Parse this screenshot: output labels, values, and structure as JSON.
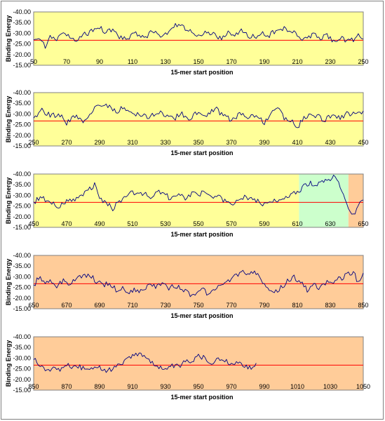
{
  "chart_data": [
    {
      "type": "line",
      "xlabel": "15-mer start position",
      "ylabel": "Binding Energy",
      "xlim": [
        50,
        250
      ],
      "ylim": [
        -15,
        -40
      ],
      "y_axis_reversed": true,
      "xticks": [
        50,
        70,
        90,
        110,
        130,
        150,
        170,
        190,
        210,
        230,
        250
      ],
      "yticks": [
        "-40.00",
        "-35.00",
        "-30.00",
        "-25.00",
        "-20.00",
        "-15.00"
      ],
      "threshold": -26.7,
      "regions": [
        {
          "from": 50,
          "to": 250,
          "color": "#FFFF99"
        }
      ],
      "anchors": [
        [
          50,
          -27
        ],
        [
          54,
          -28
        ],
        [
          57,
          -23
        ],
        [
          60,
          -29
        ],
        [
          64,
          -27
        ],
        [
          68,
          -30
        ],
        [
          72,
          -28
        ],
        [
          76,
          -27
        ],
        [
          80,
          -29
        ],
        [
          85,
          -31
        ],
        [
          90,
          -33
        ],
        [
          94,
          -30
        ],
        [
          98,
          -32
        ],
        [
          102,
          -28
        ],
        [
          106,
          -27
        ],
        [
          110,
          -30
        ],
        [
          114,
          -29
        ],
        [
          118,
          -28
        ],
        [
          122,
          -31
        ],
        [
          126,
          -29
        ],
        [
          130,
          -30
        ],
        [
          134,
          -32
        ],
        [
          137,
          -34
        ],
        [
          140,
          -33
        ],
        [
          144,
          -31
        ],
        [
          148,
          -30
        ],
        [
          152,
          -29
        ],
        [
          156,
          -31
        ],
        [
          160,
          -29
        ],
        [
          164,
          -28
        ],
        [
          168,
          -30
        ],
        [
          172,
          -29
        ],
        [
          176,
          -31
        ],
        [
          180,
          -29
        ],
        [
          184,
          -28
        ],
        [
          188,
          -30
        ],
        [
          192,
          -28
        ],
        [
          196,
          -31
        ],
        [
          200,
          -33
        ],
        [
          204,
          -31
        ],
        [
          208,
          -30
        ],
        [
          212,
          -27
        ],
        [
          216,
          -28
        ],
        [
          220,
          -30
        ],
        [
          224,
          -27
        ],
        [
          228,
          -29
        ],
        [
          232,
          -26
        ],
        [
          236,
          -28
        ],
        [
          240,
          -26
        ],
        [
          244,
          -27
        ],
        [
          247,
          -30
        ],
        [
          250,
          -27
        ]
      ],
      "seed": 11,
      "end": 250
    },
    {
      "type": "line",
      "xlabel": "15-mer start position",
      "ylabel": "Binding Energy",
      "xlim": [
        250,
        450
      ],
      "ylim": [
        -15,
        -40
      ],
      "y_axis_reversed": true,
      "xticks": [
        250,
        270,
        290,
        310,
        330,
        350,
        370,
        390,
        410,
        430,
        450
      ],
      "yticks": [
        "-40.00",
        "-35.00",
        "-30.00",
        "-25.00",
        "-20.00",
        "-15.00"
      ],
      "threshold": -26.7,
      "regions": [
        {
          "from": 250,
          "to": 450,
          "color": "#FFFF99"
        }
      ],
      "anchors": [
        [
          250,
          -27
        ],
        [
          255,
          -32
        ],
        [
          260,
          -29
        ],
        [
          265,
          -30
        ],
        [
          270,
          -26
        ],
        [
          275,
          -29
        ],
        [
          280,
          -27
        ],
        [
          285,
          -31
        ],
        [
          290,
          -35
        ],
        [
          295,
          -34
        ],
        [
          300,
          -31
        ],
        [
          305,
          -33
        ],
        [
          310,
          -29
        ],
        [
          315,
          -30
        ],
        [
          320,
          -28
        ],
        [
          325,
          -31
        ],
        [
          330,
          -29
        ],
        [
          335,
          -28
        ],
        [
          340,
          -30
        ],
        [
          345,
          -28
        ],
        [
          350,
          -31
        ],
        [
          355,
          -29
        ],
        [
          360,
          -33
        ],
        [
          365,
          -29
        ],
        [
          370,
          -27
        ],
        [
          375,
          -30
        ],
        [
          380,
          -28
        ],
        [
          385,
          -29
        ],
        [
          390,
          -26
        ],
        [
          395,
          -31
        ],
        [
          398,
          -33
        ],
        [
          402,
          -28
        ],
        [
          406,
          -27
        ],
        [
          410,
          -24
        ],
        [
          414,
          -28
        ],
        [
          418,
          -30
        ],
        [
          422,
          -29
        ],
        [
          426,
          -27
        ],
        [
          430,
          -29
        ],
        [
          435,
          -28
        ],
        [
          440,
          -30
        ],
        [
          445,
          -30
        ],
        [
          450,
          -31
        ]
      ],
      "seed": 23,
      "end": 450
    },
    {
      "type": "line",
      "xlabel": "15-mer start position",
      "ylabel": "Binding Energy",
      "xlim": [
        450,
        650
      ],
      "ylim": [
        -15,
        -40
      ],
      "y_axis_reversed": true,
      "xticks": [
        450,
        470,
        490,
        510,
        530,
        550,
        570,
        590,
        610,
        630,
        650
      ],
      "yticks": [
        "-40.00",
        "-35.00",
        "-30.00",
        "-25.00",
        "-20.00",
        "-15.00"
      ],
      "threshold": -26.7,
      "regions": [
        {
          "from": 450,
          "to": 611,
          "color": "#FFFF99"
        },
        {
          "from": 611,
          "to": 641,
          "color": "#CCFFCC"
        },
        {
          "from": 641,
          "to": 650,
          "color": "#FFCC99"
        }
      ],
      "anchors": [
        [
          450,
          -27
        ],
        [
          455,
          -29
        ],
        [
          460,
          -27
        ],
        [
          465,
          -25
        ],
        [
          470,
          -27
        ],
        [
          475,
          -28
        ],
        [
          480,
          -31
        ],
        [
          484,
          -33
        ],
        [
          487,
          -35
        ],
        [
          490,
          -29
        ],
        [
          494,
          -26
        ],
        [
          498,
          -24
        ],
        [
          502,
          -27
        ],
        [
          506,
          -30
        ],
        [
          510,
          -32
        ],
        [
          514,
          -30
        ],
        [
          518,
          -31
        ],
        [
          522,
          -29
        ],
        [
          526,
          -32
        ],
        [
          530,
          -30
        ],
        [
          534,
          -28
        ],
        [
          538,
          -30
        ],
        [
          542,
          -29
        ],
        [
          546,
          -31
        ],
        [
          550,
          -30
        ],
        [
          554,
          -32
        ],
        [
          558,
          -29
        ],
        [
          562,
          -30
        ],
        [
          566,
          -27
        ],
        [
          570,
          -25
        ],
        [
          574,
          -27
        ],
        [
          578,
          -29
        ],
        [
          582,
          -28
        ],
        [
          586,
          -27
        ],
        [
          590,
          -26
        ],
        [
          594,
          -28
        ],
        [
          598,
          -27
        ],
        [
          602,
          -29
        ],
        [
          606,
          -30
        ],
        [
          610,
          -32
        ],
        [
          614,
          -34
        ],
        [
          618,
          -36
        ],
        [
          622,
          -35
        ],
        [
          626,
          -37
        ],
        [
          630,
          -38
        ],
        [
          632,
          -39
        ],
        [
          635,
          -36
        ],
        [
          638,
          -31
        ],
        [
          641,
          -24
        ],
        [
          643,
          -21
        ],
        [
          645,
          -22
        ],
        [
          647,
          -25
        ],
        [
          650,
          -27
        ]
      ],
      "seed": 37,
      "end": 650
    },
    {
      "type": "line",
      "xlabel": "15-mer start position",
      "ylabel": "Binding Energy",
      "xlim": [
        650,
        850
      ],
      "ylim": [
        -15,
        -40
      ],
      "y_axis_reversed": true,
      "xticks": [
        650,
        670,
        690,
        710,
        730,
        750,
        770,
        790,
        810,
        830,
        850
      ],
      "yticks": [
        "-40.00",
        "-35.00",
        "-30.00",
        "-25.00",
        "-20.00",
        "-15.00"
      ],
      "threshold": -26.7,
      "regions": [
        {
          "from": 650,
          "to": 850,
          "color": "#FFCC99"
        }
      ],
      "anchors": [
        [
          650,
          -25
        ],
        [
          653,
          -30
        ],
        [
          656,
          -27
        ],
        [
          660,
          -29
        ],
        [
          664,
          -26
        ],
        [
          668,
          -28
        ],
        [
          672,
          -27
        ],
        [
          676,
          -29
        ],
        [
          680,
          -30
        ],
        [
          684,
          -31
        ],
        [
          688,
          -28
        ],
        [
          692,
          -26
        ],
        [
          696,
          -27
        ],
        [
          700,
          -24
        ],
        [
          704,
          -25
        ],
        [
          708,
          -22
        ],
        [
          712,
          -24
        ],
        [
          716,
          -23
        ],
        [
          720,
          -26
        ],
        [
          724,
          -25
        ],
        [
          728,
          -27
        ],
        [
          732,
          -25
        ],
        [
          736,
          -26
        ],
        [
          740,
          -24
        ],
        [
          744,
          -22
        ],
        [
          748,
          -21
        ],
        [
          752,
          -24
        ],
        [
          756,
          -22
        ],
        [
          760,
          -24
        ],
        [
          764,
          -26
        ],
        [
          768,
          -28
        ],
        [
          772,
          -30
        ],
        [
          776,
          -32
        ],
        [
          780,
          -31
        ],
        [
          784,
          -33
        ],
        [
          788,
          -28
        ],
        [
          792,
          -24
        ],
        [
          796,
          -22
        ],
        [
          800,
          -25
        ],
        [
          804,
          -28
        ],
        [
          808,
          -30
        ],
        [
          812,
          -27
        ],
        [
          816,
          -24
        ],
        [
          820,
          -26
        ],
        [
          824,
          -25
        ],
        [
          828,
          -27
        ],
        [
          832,
          -28
        ],
        [
          836,
          -29
        ],
        [
          840,
          -31
        ],
        [
          844,
          -32
        ],
        [
          847,
          -27
        ],
        [
          850,
          -31
        ]
      ],
      "seed": 53,
      "end": 850
    },
    {
      "type": "line",
      "xlabel": "15-mer start position",
      "ylabel": "Binding Energy",
      "xlim": [
        850,
        1050
      ],
      "ylim": [
        -15,
        -40
      ],
      "y_axis_reversed": true,
      "xticks": [
        850,
        870,
        890,
        910,
        930,
        950,
        970,
        990,
        1010,
        1030,
        1050
      ],
      "yticks": [
        "-40.00",
        "-35.00",
        "-30.00",
        "-25.00",
        "-20.00",
        "-15.00"
      ],
      "threshold": -26.7,
      "regions": [
        {
          "from": 850,
          "to": 1050,
          "color": "#FFCC99"
        }
      ],
      "anchors": [
        [
          850,
          -30
        ],
        [
          854,
          -26
        ],
        [
          858,
          -24
        ],
        [
          862,
          -26
        ],
        [
          866,
          -25
        ],
        [
          870,
          -27
        ],
        [
          874,
          -25
        ],
        [
          878,
          -26
        ],
        [
          882,
          -24
        ],
        [
          886,
          -25
        ],
        [
          890,
          -26
        ],
        [
          894,
          -24
        ],
        [
          898,
          -25
        ],
        [
          902,
          -27
        ],
        [
          906,
          -29
        ],
        [
          910,
          -31
        ],
        [
          914,
          -32
        ],
        [
          918,
          -30
        ],
        [
          922,
          -28
        ],
        [
          926,
          -26
        ],
        [
          930,
          -25
        ],
        [
          934,
          -27
        ],
        [
          938,
          -26
        ],
        [
          942,
          -28
        ],
        [
          946,
          -29
        ],
        [
          950,
          -31
        ],
        [
          954,
          -30
        ],
        [
          958,
          -28
        ],
        [
          962,
          -30
        ],
        [
          966,
          -29
        ],
        [
          970,
          -27
        ],
        [
          974,
          -28
        ],
        [
          978,
          -26
        ],
        [
          982,
          -25
        ],
        [
          985,
          -28
        ]
      ],
      "seed": 71,
      "end": 985
    }
  ],
  "style": {
    "line_color": "#000080",
    "threshold_color": "#FF0000",
    "plot_border_color": "#808080"
  }
}
